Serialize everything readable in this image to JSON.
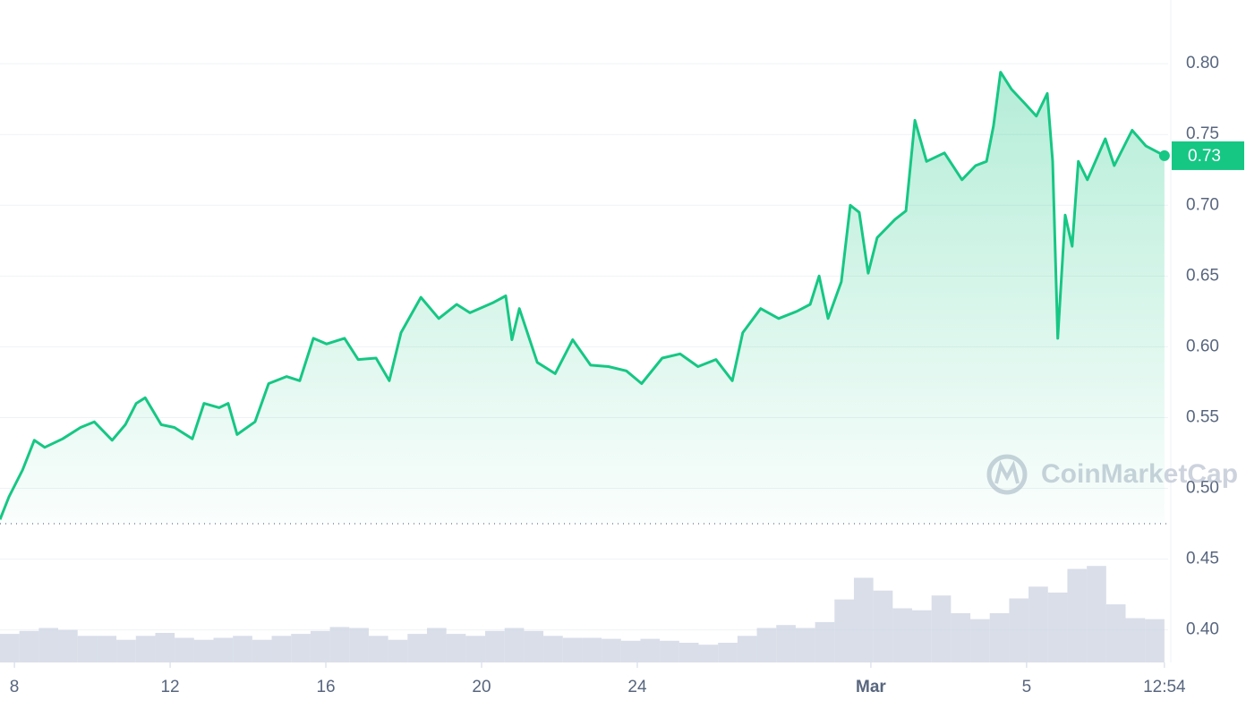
{
  "chart_data": {
    "type": "line",
    "x": [
      -0.37,
      -0.14,
      0.21,
      0.51,
      0.78,
      1.24,
      1.7,
      2.05,
      2.51,
      2.85,
      3.13,
      3.36,
      3.77,
      4.11,
      4.57,
      4.87,
      5.26,
      5.49,
      5.72,
      6.18,
      6.53,
      6.99,
      7.33,
      7.68,
      8.02,
      8.48,
      8.83,
      9.29,
      9.63,
      9.93,
      10.44,
      10.9,
      11.36,
      11.7,
      12.28,
      12.62,
      12.78,
      12.97,
      13.43,
      13.89,
      14.34,
      14.8,
      15.26,
      15.72,
      16.11,
      16.64,
      17.1,
      17.56,
      18.02,
      18.44,
      18.71,
      19.17,
      19.63,
      20.09,
      20.44,
      20.67,
      20.9,
      21.24,
      21.47,
      21.7,
      21.93,
      22.16,
      22.62,
      22.9,
      23.13,
      23.43,
      23.89,
      24.34,
      24.69,
      24.97,
      25.15,
      25.33,
      25.61,
      25.95,
      26.25,
      26.53,
      26.67,
      26.8,
      26.99,
      27.17,
      27.33,
      27.56,
      28.02,
      28.25,
      28.71,
      29.06,
      29.54
    ],
    "series": [
      {
        "color": "#16c784",
        "values": [
          0.478,
          0.494,
          0.513,
          0.534,
          0.529,
          0.535,
          0.543,
          0.547,
          0.534,
          0.545,
          0.56,
          0.564,
          0.545,
          0.543,
          0.535,
          0.56,
          0.557,
          0.56,
          0.538,
          0.547,
          0.574,
          0.579,
          0.576,
          0.606,
          0.602,
          0.606,
          0.591,
          0.592,
          0.576,
          0.61,
          0.635,
          0.62,
          0.63,
          0.624,
          0.631,
          0.636,
          0.605,
          0.627,
          0.589,
          0.581,
          0.605,
          0.587,
          0.586,
          0.583,
          0.574,
          0.592,
          0.595,
          0.586,
          0.591,
          0.576,
          0.61,
          0.627,
          0.62,
          0.625,
          0.63,
          0.65,
          0.62,
          0.646,
          0.7,
          0.695,
          0.652,
          0.677,
          0.69,
          0.696,
          0.76,
          0.731,
          0.737,
          0.718,
          0.728,
          0.731,
          0.756,
          0.794,
          0.782,
          0.772,
          0.763,
          0.779,
          0.731,
          0.606,
          0.693,
          0.671,
          0.731,
          0.718,
          0.747,
          0.728,
          0.753,
          0.742,
          0.735
        ]
      }
    ],
    "last_value_label": "0.73",
    "baseline": 0.475,
    "xlim": [
      -0.37,
      29.75
    ],
    "xticks": [
      {
        "value": 0,
        "label": "8"
      },
      {
        "value": 4,
        "label": "12"
      },
      {
        "value": 8,
        "label": "16"
      },
      {
        "value": 12,
        "label": "20"
      },
      {
        "value": 16,
        "label": "24"
      },
      {
        "value": 22,
        "label": "Mar"
      },
      {
        "value": 26,
        "label": "5"
      },
      {
        "value": 29.54,
        "label": "12:54"
      }
    ],
    "ylim": [
      0.377,
      0.845
    ],
    "yticks": [
      {
        "value": 0.4,
        "label": "0.40"
      },
      {
        "value": 0.45,
        "label": "0.45"
      },
      {
        "value": 0.5,
        "label": "0.50"
      },
      {
        "value": 0.55,
        "label": "0.55"
      },
      {
        "value": 0.6,
        "label": "0.60"
      },
      {
        "value": 0.65,
        "label": "0.65"
      },
      {
        "value": 0.7,
        "label": "0.70"
      },
      {
        "value": 0.75,
        "label": "0.75"
      },
      {
        "value": 0.8,
        "label": "0.80"
      }
    ],
    "grid": true,
    "volume": {
      "color": "#cfd6e4",
      "vlim": [
        0,
        100
      ],
      "values": [
        29,
        32,
        35,
        33,
        27,
        27,
        23,
        27,
        30,
        25,
        23,
        25,
        27,
        23,
        27,
        29,
        32,
        36,
        35,
        27,
        23,
        29,
        35,
        29,
        27,
        32,
        35,
        32,
        27,
        25,
        25,
        24,
        22,
        24,
        22,
        20,
        18,
        20,
        27,
        35,
        38,
        35,
        41,
        64,
        86,
        73,
        55,
        53,
        68,
        50,
        44,
        50,
        65,
        77,
        71,
        95,
        98,
        59,
        45,
        44
      ]
    },
    "watermark": "CoinMarketCap"
  }
}
